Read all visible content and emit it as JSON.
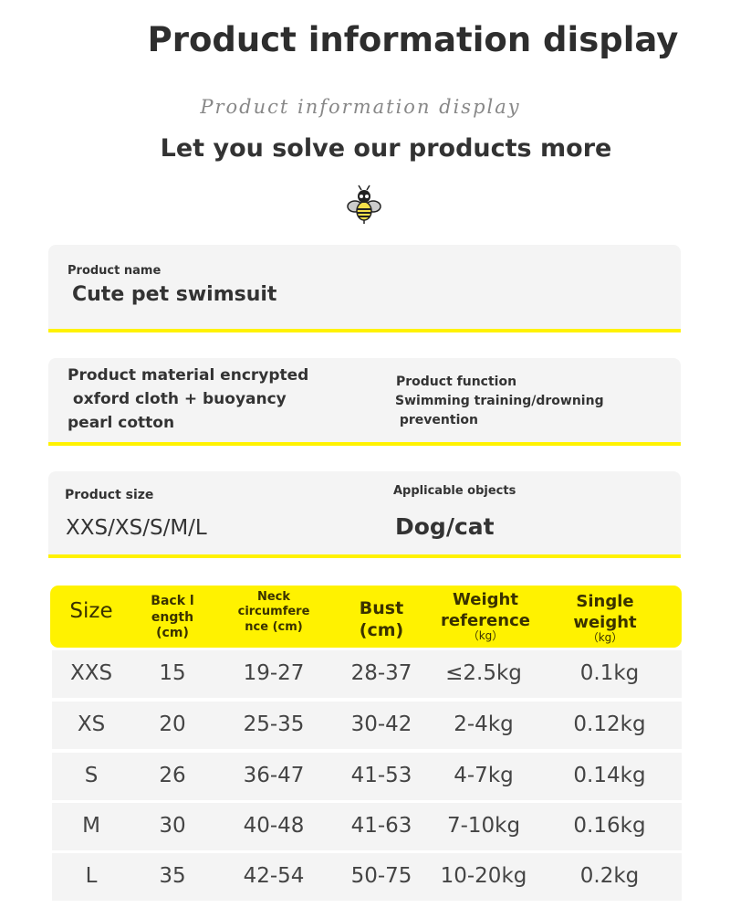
{
  "header": {
    "title": "Product information display",
    "script_title": "Product information display",
    "subtitle": "Let you solve our products more"
  },
  "cards": {
    "name": {
      "label": "Product name",
      "value": "Cute pet swimsuit"
    },
    "material": {
      "value": "Product material encrypted\n oxford cloth + buoyancy\npearl cotton"
    },
    "function": {
      "label": "Product function",
      "value": "Swimming training/drowning\n prevention"
    },
    "size": {
      "label": "Product size",
      "value": "XXS/XS/S/M/L"
    },
    "objects": {
      "label": "Applicable objects",
      "value": "Dog/cat"
    }
  },
  "table": {
    "headers": [
      {
        "label": "Size"
      },
      {
        "label": "Back l\nength\n(cm)"
      },
      {
        "label": "Neck\ncircumfere\nnce (cm)"
      },
      {
        "label": "Bust\n(cm)"
      },
      {
        "label": "Weight\nreference",
        "unit": "（kg）"
      },
      {
        "label": "Single\nweight",
        "unit": "（kg）"
      }
    ],
    "rows": [
      [
        "XXS",
        "15",
        "19-27",
        "28-37",
        "≤2.5kg",
        "0.1kg"
      ],
      [
        "XS",
        "20",
        "25-35",
        "30-42",
        "2-4kg",
        "0.12kg"
      ],
      [
        "S",
        "26",
        "36-47",
        "41-53",
        "4-7kg",
        "0.14kg"
      ],
      [
        "M",
        "30",
        "40-48",
        "41-63",
        "7-10kg",
        "0.16kg"
      ],
      [
        "L",
        "35",
        "42-54",
        "50-75",
        "10-20kg",
        "0.2kg"
      ]
    ]
  },
  "colors": {
    "accent": "#fff200",
    "card": "#f4f4f4"
  }
}
